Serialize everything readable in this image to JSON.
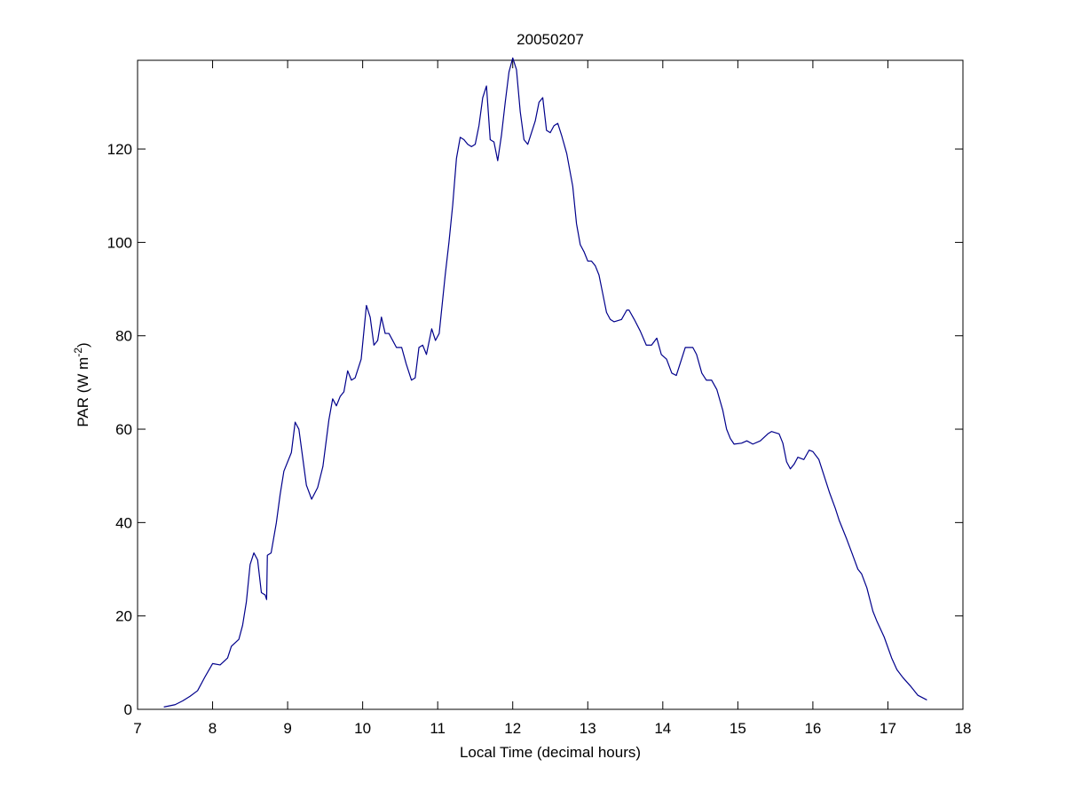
{
  "chart_data": {
    "type": "line",
    "title": "20050207",
    "xlabel": "Local Time (decimal hours)",
    "ylabel": [
      "PAR (W m",
      "-2",
      ")"
    ],
    "xlim": [
      7,
      18
    ],
    "xticks": [
      7,
      8,
      9,
      10,
      11,
      12,
      13,
      14,
      15,
      16,
      17,
      18
    ],
    "ylim": [
      0,
      139
    ],
    "yticks": [
      0,
      20,
      40,
      60,
      80,
      100,
      120
    ],
    "grid": false,
    "series": [
      {
        "color": "#00008b",
        "x": [
          7.35,
          7.5,
          7.6,
          7.7,
          7.8,
          7.9,
          8.0,
          8.1,
          8.2,
          8.25,
          8.35,
          8.4,
          8.45,
          8.5,
          8.55,
          8.6,
          8.65,
          8.7,
          8.72,
          8.73,
          8.78,
          8.85,
          8.9,
          8.95,
          9.05,
          9.1,
          9.15,
          9.2,
          9.25,
          9.32,
          9.4,
          9.47,
          9.55,
          9.6,
          9.65,
          9.7,
          9.75,
          9.8,
          9.85,
          9.9,
          9.98,
          10.05,
          10.1,
          10.15,
          10.2,
          10.25,
          10.3,
          10.35,
          10.4,
          10.45,
          10.52,
          10.58,
          10.65,
          10.7,
          10.75,
          10.8,
          10.85,
          10.92,
          10.97,
          11.02,
          11.1,
          11.15,
          11.2,
          11.25,
          11.3,
          11.35,
          11.4,
          11.45,
          11.5,
          11.55,
          11.6,
          11.65,
          11.7,
          11.75,
          11.8,
          11.85,
          11.9,
          11.95,
          12.0,
          12.05,
          12.1,
          12.15,
          12.2,
          12.25,
          12.3,
          12.35,
          12.4,
          12.45,
          12.5,
          12.55,
          12.6,
          12.65,
          12.72,
          12.8,
          12.85,
          12.9,
          12.95,
          13.0,
          13.05,
          13.1,
          13.15,
          13.2,
          13.25,
          13.3,
          13.35,
          13.45,
          13.52,
          13.55,
          13.62,
          13.7,
          13.78,
          13.85,
          13.92,
          13.98,
          14.05,
          14.12,
          14.18,
          14.25,
          14.3,
          14.35,
          14.4,
          14.45,
          14.52,
          14.58,
          14.65,
          14.72,
          14.8,
          14.85,
          14.9,
          14.95,
          15.05,
          15.12,
          15.2,
          15.3,
          15.4,
          15.45,
          15.55,
          15.6,
          15.65,
          15.7,
          15.75,
          15.8,
          15.88,
          15.95,
          16.0,
          16.08,
          16.15,
          16.22,
          16.3,
          16.35,
          16.45,
          16.52,
          16.6,
          16.65,
          16.72,
          16.8,
          16.85,
          16.95,
          17.05,
          17.12,
          17.2,
          17.3,
          17.4,
          17.52
        ],
        "values": [
          0.5,
          1,
          1.8,
          2.8,
          4,
          7,
          9.8,
          9.5,
          11,
          13.5,
          15,
          18,
          23,
          31,
          33.5,
          32,
          25,
          24.5,
          23.5,
          33,
          33.5,
          40,
          46,
          51,
          55,
          61.5,
          60,
          54,
          48,
          45,
          47.5,
          52,
          62,
          66.5,
          65,
          67,
          68,
          72.5,
          70.5,
          71,
          75,
          86.5,
          84,
          78,
          79,
          84,
          80.5,
          80.5,
          79,
          77.5,
          77.5,
          74,
          70.5,
          71,
          77.5,
          78,
          76,
          81.5,
          79,
          80.5,
          93,
          100,
          108,
          118,
          122.5,
          122,
          121,
          120.5,
          121,
          125,
          131,
          133.5,
          122,
          121.5,
          117.5,
          123,
          130,
          136.5,
          139.5,
          137,
          128,
          122,
          121,
          123.5,
          126,
          130,
          131,
          124,
          123.5,
          125,
          125.5,
          123,
          119,
          112,
          104,
          99.5,
          98,
          96,
          96,
          95,
          93,
          89,
          85,
          83.5,
          83,
          83.5,
          85.5,
          85.5,
          83.5,
          81,
          78,
          78,
          79.5,
          76,
          75,
          72,
          71.5,
          75,
          77.5,
          77.5,
          77.5,
          76,
          72,
          70.5,
          70.5,
          68.5,
          64,
          60,
          58,
          56.8,
          57,
          57.5,
          56.8,
          57.5,
          59,
          59.5,
          59,
          57,
          53,
          51.5,
          52.5,
          54,
          53.5,
          55.5,
          55.2,
          53.5,
          50,
          46.5,
          43,
          40.5,
          36.5,
          33.5,
          30,
          29,
          26,
          21,
          19,
          15.5,
          11,
          8.5,
          6.8,
          5,
          3,
          2
        ]
      }
    ]
  }
}
